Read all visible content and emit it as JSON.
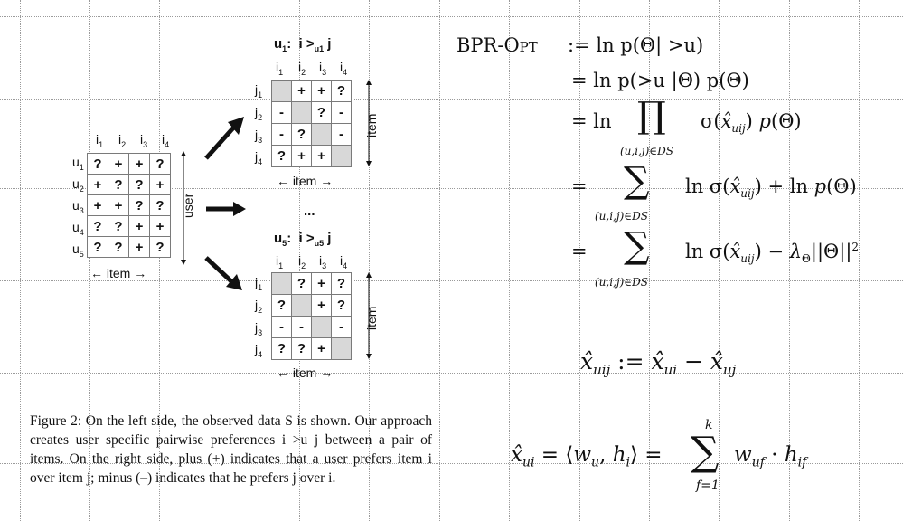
{
  "figure": {
    "left_matrix": {
      "col_labels": [
        "i1",
        "i2",
        "i3",
        "i4"
      ],
      "row_labels": [
        "u1",
        "u2",
        "u3",
        "u4",
        "u5"
      ],
      "cells": [
        [
          "?",
          "+",
          "+",
          "?"
        ],
        [
          "+",
          "?",
          "?",
          "+"
        ],
        [
          "+",
          "+",
          "?",
          "?"
        ],
        [
          "?",
          "?",
          "+",
          "+"
        ],
        [
          "?",
          "?",
          "+",
          "?"
        ]
      ],
      "x_axis": "item",
      "y_axis": "user"
    },
    "right_top": {
      "title": "u1:  i >u1 j",
      "col_labels": [
        "i1",
        "i2",
        "i3",
        "i4"
      ],
      "row_labels": [
        "j1",
        "j2",
        "j3",
        "j4"
      ],
      "cells": [
        [
          "",
          "+",
          "+",
          "?"
        ],
        [
          "-",
          "",
          "?",
          "-"
        ],
        [
          "-",
          "?",
          "",
          "-"
        ],
        [
          "?",
          "+",
          "+",
          ""
        ]
      ],
      "x_axis": "item",
      "y_axis": "item"
    },
    "ellipsis": "...",
    "right_bottom": {
      "title": "u5:  i >u5 j",
      "col_labels": [
        "i1",
        "i2",
        "i3",
        "i4"
      ],
      "row_labels": [
        "j1",
        "j2",
        "j3",
        "j4"
      ],
      "cells": [
        [
          "",
          "?",
          "+",
          "?"
        ],
        [
          "?",
          "",
          "+",
          "?"
        ],
        [
          "-",
          "-",
          "",
          "-"
        ],
        [
          "?",
          "?",
          "+",
          ""
        ]
      ],
      "x_axis": "item",
      "y_axis": "item"
    }
  },
  "caption": {
    "label": "Figure 2:",
    "text": "On the left side, the observed data S is shown. Our approach creates user specific pairwise preferences i >u j between a pair of items. On the right side, plus (+) indicates that a user prefers item i over item j; minus (–) indicates that he prefers j over i."
  },
  "equations": {
    "bpr_opt_lhs": "BPR-Opt",
    "line1": ":= ln p(Θ| >u)",
    "line2": "= ln p(>u |Θ) p(Θ)",
    "line3": "= ln ∏ σ(x̂uij) p(Θ)",
    "line3_sub": "(u,i,j)∈DS",
    "line4": "= ∑ ln σ(x̂uij) + ln p(Θ)",
    "line4_sub": "(u,i,j)∈DS",
    "line5": "= ∑ ln σ(x̂uij) − λΘ||Θ||²",
    "line5_sub": "(u,i,j)∈DS",
    "xuij_def": "x̂uij := x̂ui − x̂uj",
    "xui_def": "x̂ui = ⟨wu, hi⟩ = ∑ wuf · hif",
    "sum_top": "k",
    "sum_bottom": "f=1"
  }
}
